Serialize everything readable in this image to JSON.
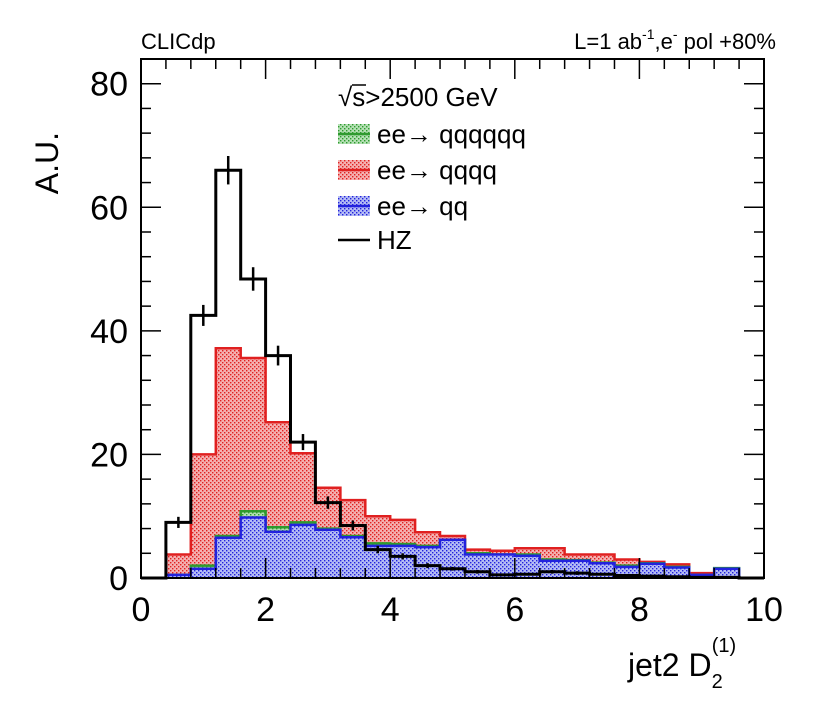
{
  "chart_data": {
    "type": "histogram",
    "title": "",
    "corner_left": "CLICdp",
    "corner_right": {
      "lumi_prefix": "L=1 ab",
      "lumi_exp": "-1",
      "mid": ",e",
      "pol_exp": "-",
      "pol_suffix": " pol +80%"
    },
    "xlabel": {
      "main": "jet2 D",
      "sub": "2",
      "sup": "(1)"
    },
    "ylabel": "A.U.",
    "xlim": [
      0,
      10
    ],
    "ylim": [
      0,
      84
    ],
    "x_ticks": [
      "0",
      "2",
      "4",
      "6",
      "8",
      "10"
    ],
    "y_ticks": [
      "0",
      "20",
      "40",
      "60",
      "80"
    ],
    "bin_edges": [
      0,
      0.4,
      0.8,
      1.2,
      1.6,
      2.0,
      2.4,
      2.8,
      3.2,
      3.6,
      4.0,
      4.4,
      4.8,
      5.2,
      5.6,
      6.0,
      6.4,
      6.8,
      7.2,
      7.6,
      8.0,
      8.4,
      8.8,
      9.2,
      9.6,
      10.0
    ],
    "legend": {
      "header_sqrt": "√",
      "header_text": "s>2500 GeV",
      "entries": [
        {
          "name": "ee→ qqqqqq",
          "color": "#2e9a2e"
        },
        {
          "name": "ee→ qqqq",
          "color": "#e02020"
        },
        {
          "name": "ee→ qq",
          "color": "#2222dd"
        },
        {
          "name": "HZ",
          "color": "#000000"
        }
      ]
    },
    "series": [
      {
        "name": "ee→ qqqq",
        "kind": "stack_top",
        "fill": "#f7a8a8",
        "line": "#e02020",
        "values": [
          0,
          3.8,
          20,
          37.2,
          35.6,
          25.2,
          20.2,
          14.6,
          12.6,
          10,
          9.4,
          7.4,
          6.8,
          4.6,
          4.4,
          4.8,
          4.8,
          3.8,
          3.8,
          3.0,
          2.6,
          2.2,
          0.8,
          1.2,
          0
        ]
      },
      {
        "name": "ee→ qqqqqq",
        "kind": "stack_mid",
        "fill": "#a8dca8",
        "line": "#2e9a2e",
        "values": [
          0,
          0.5,
          2,
          6.8,
          10.8,
          8.2,
          9,
          8,
          6.8,
          5.6,
          5.5,
          5.2,
          6.2,
          4,
          3.8,
          3.8,
          3,
          2.9,
          2.5,
          2,
          2.4,
          1.8,
          0.5,
          1.6,
          0
        ]
      },
      {
        "name": "ee→ qq",
        "kind": "stack_bottom",
        "fill": "#a8b4f2",
        "line": "#2222dd",
        "values": [
          0,
          0.5,
          1.5,
          6.5,
          9.8,
          7.5,
          8.6,
          7.8,
          6.6,
          5.2,
          5.2,
          5.0,
          6.2,
          3.8,
          3.8,
          3.6,
          2.8,
          2.8,
          2.4,
          1.8,
          2.3,
          1.7,
          0.5,
          1.5,
          0
        ]
      },
      {
        "name": "HZ",
        "kind": "line_errorbar",
        "line": "#000000",
        "values": [
          0,
          9,
          42.5,
          66,
          48.4,
          36,
          22,
          12.2,
          8.5,
          4.6,
          3.5,
          2.0,
          1.5,
          1.0,
          0.5,
          0.6,
          1.0,
          0.8,
          0.6,
          0.4,
          0.3,
          0.2,
          0.1,
          0.1,
          0
        ],
        "errors": [
          0,
          0.9,
          1.7,
          2.3,
          1.9,
          1.6,
          1.3,
          1.0,
          0.8,
          0.6,
          0.5,
          0.4,
          0.3,
          0.3,
          0.2,
          0.2,
          0.3,
          0.3,
          0.2,
          0.2,
          0.2,
          0.1,
          0.1,
          0.1,
          0
        ]
      }
    ]
  }
}
